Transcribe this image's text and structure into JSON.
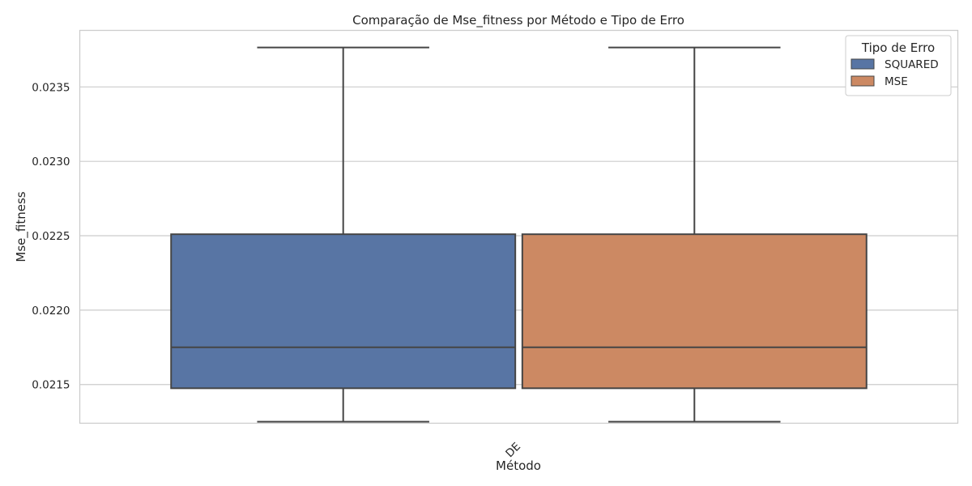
{
  "chart_data": {
    "type": "box",
    "title": "Comparação de Mse_fitness por Método e Tipo de Erro",
    "xlabel": "Método",
    "ylabel": "Mse_fitness",
    "categories": [
      "DE"
    ],
    "ylim": [
      0.02124,
      0.02388
    ],
    "yticks": [
      0.0215,
      0.022,
      0.0225,
      0.023,
      0.0235
    ],
    "ytick_labels": [
      "0.0215",
      "0.0220",
      "0.0225",
      "0.0230",
      "0.0235"
    ],
    "grid": true,
    "legend": {
      "title": "Tipo de Erro",
      "position": "top-right"
    },
    "series": [
      {
        "name": "SQUARED",
        "color": "#5875a4",
        "boxes": [
          {
            "category": "DE",
            "whisker_low": 0.02125,
            "q1": 0.021475,
            "median": 0.02175,
            "q3": 0.02251,
            "whisker_high": 0.023765
          }
        ]
      },
      {
        "name": "MSE",
        "color": "#cc8963",
        "boxes": [
          {
            "category": "DE",
            "whisker_low": 0.02125,
            "q1": 0.021475,
            "median": 0.02175,
            "q3": 0.02251,
            "whisker_high": 0.023765
          }
        ]
      }
    ]
  }
}
